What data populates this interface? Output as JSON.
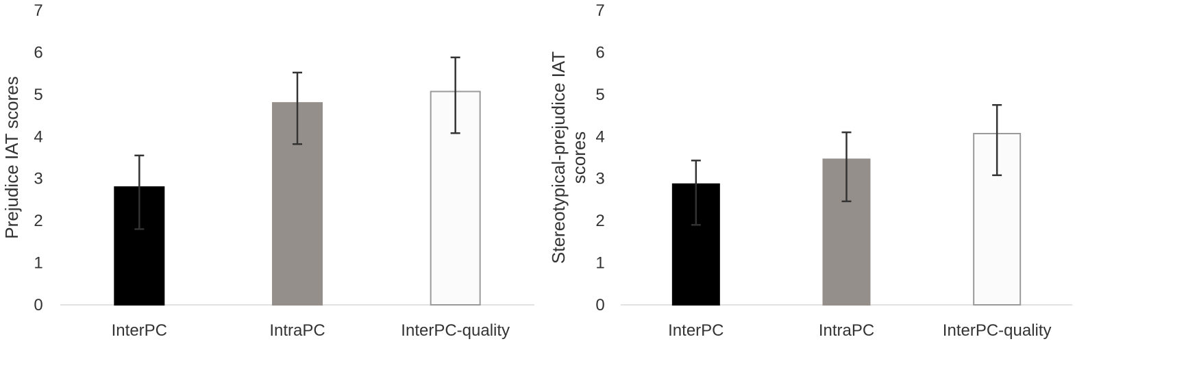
{
  "chart_data": [
    {
      "type": "bar",
      "title": "",
      "xlabel": "",
      "ylabel": "Prejudice IAT scores",
      "ylim": [
        0,
        7
      ],
      "yticks": [
        "0",
        "1",
        "2",
        "3",
        "4",
        "5",
        "6",
        "7"
      ],
      "categories": [
        "InterPC",
        "IntraPC",
        "InterPC-quality"
      ],
      "values": [
        2.8,
        4.8,
        5.07
      ],
      "error_low": [
        1.8,
        3.82,
        4.08
      ],
      "error_high": [
        3.55,
        5.52,
        5.88
      ],
      "bar_colors": [
        "#000000",
        "#958f8b",
        "#fbfbfb"
      ],
      "bar_edge_colors": [
        "#000000",
        "#958f8b",
        "#9a9a9a"
      ],
      "grid": false,
      "legend": "none"
    },
    {
      "type": "bar",
      "title": "",
      "xlabel": "",
      "ylabel": "Stereotypical-prejudice IAT scores",
      "ylim": [
        0,
        7
      ],
      "yticks": [
        "0",
        "1",
        "2",
        "3",
        "4",
        "5",
        "6",
        "7"
      ],
      "categories": [
        "InterPC",
        "IntraPC",
        "InterPC-quality"
      ],
      "values": [
        2.87,
        3.46,
        4.07
      ],
      "error_low": [
        1.9,
        2.46,
        3.08
      ],
      "error_high": [
        3.43,
        4.1,
        4.75
      ],
      "bar_colors": [
        "#000000",
        "#958f8b",
        "#fbfbfb"
      ],
      "bar_edge_colors": [
        "#000000",
        "#958f8b",
        "#9a9a9a"
      ],
      "grid": false,
      "legend": "none"
    }
  ]
}
